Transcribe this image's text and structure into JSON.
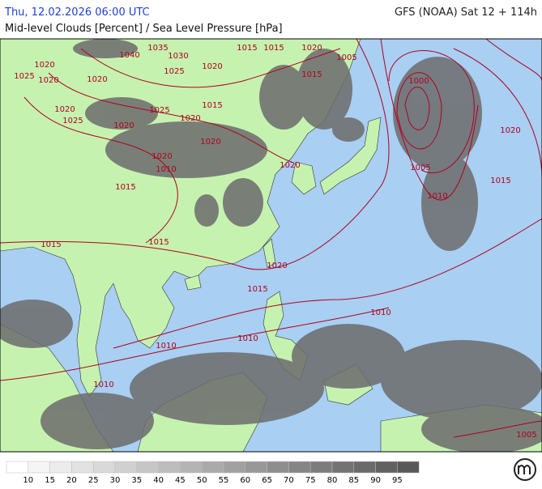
{
  "header": {
    "datetime": "Thu, 12.02.2026 06:00 UTC",
    "model": "GFS (NOAA) Sat 12 + 114h",
    "subtitle": "Mid-level Clouds [Percent] / Sea Level Pressure [hPa]"
  },
  "isobar_labels": [
    "1035",
    "1040",
    "1030",
    "1020",
    "1025",
    "1020",
    "1020",
    "1025",
    "1020",
    "1015",
    "1015",
    "1020",
    "1005",
    "1015",
    "1015",
    "1025",
    "1020",
    "1020",
    "1025",
    "1020",
    "1020",
    "1010",
    "1015",
    "1020",
    "1020",
    "1000",
    "1005",
    "1010",
    "1020",
    "1015",
    "1015",
    "1015",
    "1020",
    "1015",
    "1010",
    "1010",
    "1010",
    "1010",
    "1005"
  ],
  "legend": {
    "labels": [
      10,
      15,
      20,
      25,
      30,
      35,
      40,
      45,
      50,
      55,
      60,
      65,
      70,
      75,
      80,
      85,
      90,
      95
    ],
    "colors": [
      "#ffffff",
      "#f5f5f5",
      "#ececec",
      "#e2e2e2",
      "#d9d9d9",
      "#d0d0d0",
      "#c6c6c6",
      "#bdbdbd",
      "#b4b4b4",
      "#aaaaaa",
      "#a1a1a1",
      "#989898",
      "#8e8e8e",
      "#858585",
      "#7c7c7c",
      "#737373",
      "#6a6a6a",
      "#616161",
      "#585858"
    ]
  }
}
